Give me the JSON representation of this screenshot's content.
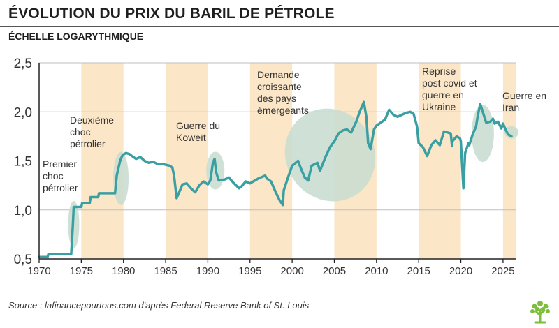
{
  "header": {
    "title": "ÉVOLUTION DU PRIX DU BARIL DE PÉTROLE",
    "subtitle": "ÉCHELLE LOGARYTHMIQUE"
  },
  "footer": {
    "source": "Source : lafinancepourtous.com d'après Federal Reserve Bank of St. Louis",
    "logo_icon": "tree-logo-icon"
  },
  "colors": {
    "line": "#3a9fa2",
    "band": "#fbe6c7",
    "highlight": "#c7dccf",
    "grid": "#bfbfbf"
  },
  "chart_data": {
    "type": "line",
    "title": "ÉVOLUTION DU PRIX DU BARIL DE PÉTROLE",
    "subtitle": "ÉCHELLE LOGARYTHMIQUE",
    "xlabel": "",
    "ylabel": "",
    "xlim": [
      1970,
      2026.5
    ],
    "ylim": [
      0.5,
      2.5
    ],
    "x_ticks": [
      "1970",
      "1975",
      "1980",
      "1985",
      "1990",
      "1995",
      "2000",
      "2005",
      "2010",
      "2015",
      "2020",
      "2025"
    ],
    "y_ticks": [
      "0,5",
      "1,0",
      "1,5",
      "2,0",
      "2,5"
    ],
    "grid": "horizontal",
    "shaded_periods": [
      [
        1975,
        1980
      ],
      [
        1985,
        1990
      ],
      [
        1995,
        2000
      ],
      [
        2005,
        2010
      ],
      [
        2015,
        2020
      ],
      [
        2025,
        2026.5
      ]
    ],
    "series": [
      {
        "x": [
          1970,
          1971,
          1971.1,
          1973.8,
          1974,
          1974.1,
          1975,
          1975.1,
          1976,
          1976.1,
          1977,
          1977.1,
          1978,
          1978.1,
          1979,
          1979.2,
          1979.6,
          1979.9,
          1980.3,
          1980.7,
          1981,
          1981.5,
          1982,
          1982.5,
          1983,
          1983.5,
          1984,
          1984.5,
          1985,
          1985.5,
          1985.8,
          1986,
          1986.3,
          1986.6,
          1987,
          1987.5,
          1988,
          1988.5,
          1989,
          1989.5,
          1990,
          1990.3,
          1990.6,
          1990.8,
          1991,
          1991.3,
          1992,
          1992.5,
          1993,
          1993.7,
          1994,
          1994.5,
          1995,
          1996,
          1996.8,
          1997,
          1997.5,
          1998,
          1998.5,
          1998.9,
          1999,
          1999.5,
          2000,
          2000.7,
          2001,
          2001.5,
          2001.9,
          2002.3,
          2003,
          2003.3,
          2004,
          2004.5,
          2005,
          2005.5,
          2006,
          2006.5,
          2007,
          2007.6,
          2008,
          2008.5,
          2008.8,
          2009,
          2009.3,
          2009.7,
          2010,
          2011,
          2011.5,
          2012,
          2012.5,
          2013,
          2013.5,
          2014,
          2014.4,
          2014.8,
          2015,
          2015.5,
          2016,
          2016.5,
          2017,
          2017.5,
          2018,
          2018.8,
          2018.95,
          2019,
          2019.5,
          2019.9,
          2020,
          2020.3,
          2020.5,
          2020.9,
          2021,
          2021.4,
          2021.8,
          2022,
          2022.3,
          2022.6,
          2023,
          2023.5,
          2023.8,
          2024,
          2024.4,
          2024.8,
          2025,
          2025.3,
          2025.6,
          2026
        ],
        "values": [
          0.52,
          0.52,
          0.55,
          0.55,
          0.85,
          1.03,
          1.03,
          1.07,
          1.07,
          1.13,
          1.13,
          1.17,
          1.17,
          1.17,
          1.17,
          1.35,
          1.5,
          1.56,
          1.58,
          1.57,
          1.55,
          1.52,
          1.54,
          1.5,
          1.48,
          1.49,
          1.47,
          1.47,
          1.46,
          1.45,
          1.43,
          1.35,
          1.12,
          1.18,
          1.26,
          1.27,
          1.22,
          1.18,
          1.25,
          1.29,
          1.26,
          1.3,
          1.48,
          1.52,
          1.38,
          1.3,
          1.31,
          1.33,
          1.28,
          1.22,
          1.24,
          1.29,
          1.27,
          1.32,
          1.35,
          1.32,
          1.29,
          1.19,
          1.1,
          1.05,
          1.2,
          1.33,
          1.45,
          1.5,
          1.43,
          1.33,
          1.3,
          1.45,
          1.48,
          1.4,
          1.55,
          1.64,
          1.7,
          1.78,
          1.81,
          1.82,
          1.79,
          1.9,
          2.0,
          2.1,
          1.95,
          1.68,
          1.62,
          1.82,
          1.86,
          1.92,
          2.02,
          1.97,
          1.95,
          1.97,
          1.99,
          2.0,
          1.98,
          1.85,
          1.68,
          1.64,
          1.55,
          1.66,
          1.71,
          1.66,
          1.8,
          1.78,
          1.65,
          1.7,
          1.75,
          1.73,
          1.7,
          1.22,
          1.58,
          1.68,
          1.66,
          1.77,
          1.85,
          1.96,
          2.08,
          2.0,
          1.89,
          1.9,
          1.93,
          1.88,
          1.9,
          1.83,
          1.88,
          1.82,
          1.77,
          1.75
        ]
      }
    ],
    "annotations": [
      {
        "x": 1974,
        "lines": [
          "Premier",
          "choc",
          "pétrolier"
        ]
      },
      {
        "x": 1979.5,
        "lines": [
          "Deuxième",
          "choc",
          "pétrolier"
        ]
      },
      {
        "x": 1990.8,
        "lines": [
          "Guerre du",
          "Koweït"
        ]
      },
      {
        "x": 2005,
        "lines": [
          "Demande",
          "croissante",
          "des pays",
          "émergeants"
        ]
      },
      {
        "x": 2021.5,
        "lines": [
          "Reprise",
          "post covid et",
          "guerre en",
          "Ukraine"
        ]
      },
      {
        "x": 2025.5,
        "lines": [
          "Guerre en",
          "Iran"
        ]
      }
    ]
  }
}
